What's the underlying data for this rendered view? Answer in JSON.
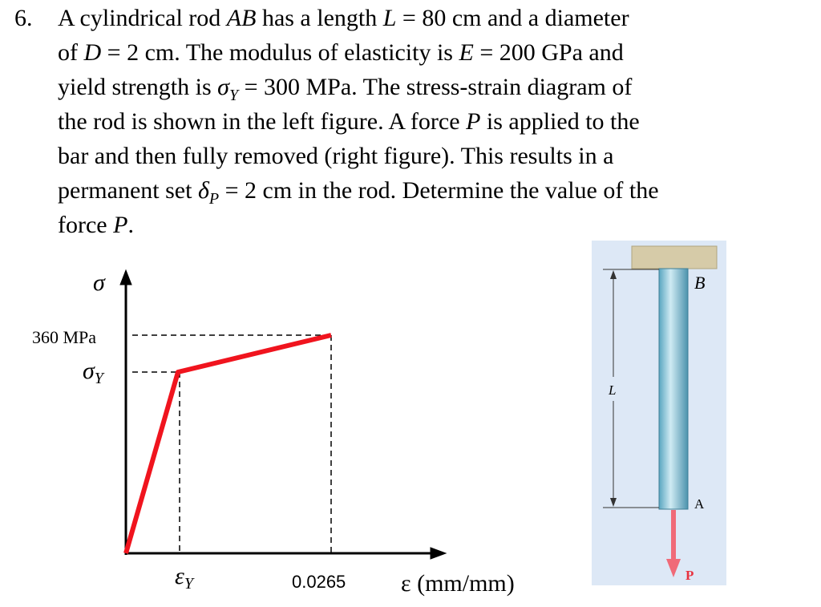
{
  "problem": {
    "number": "6.",
    "lines": [
      [
        "A cylindrical rod ",
        {
          "text": "AB",
          "style": "italic"
        },
        " has a length ",
        {
          "text": "L",
          "style": "italic"
        },
        " = 80 cm and a diameter"
      ],
      [
        "of ",
        {
          "text": "D",
          "style": "italic"
        },
        " = 2 cm. The modulus of elasticity is ",
        {
          "text": "E",
          "style": "italic"
        },
        " = 200 GPa and"
      ],
      [
        "yield strength is ",
        {
          "text": "σ",
          "style": "italic"
        },
        {
          "text": "Y",
          "style": "subscript"
        },
        " = 300 MPa. The stress-strain diagram of"
      ],
      [
        "the rod is shown in the left figure. A force ",
        {
          "text": "P",
          "style": "italic"
        },
        " is applied to the"
      ],
      [
        "bar and then fully removed (right figure). This results in a"
      ],
      [
        "permanent set ",
        {
          "text": "δ",
          "style": "italic"
        },
        {
          "text": "P",
          "style": "subscript"
        },
        " = 2 cm in the rod. Determine the value of the"
      ],
      [
        "force ",
        {
          "text": "P",
          "style": "italic"
        },
        "."
      ]
    ]
  },
  "stress_strain": {
    "y_symbol": "σ",
    "ultimate_label": "360 MPa",
    "yield_label": [
      "σ",
      "Y"
    ],
    "yield_strain_label": [
      "ε",
      "Y"
    ],
    "strain_label": "0.0265",
    "x_label": "ε (mm/mm)"
  },
  "rod": {
    "top": "B",
    "length": "L",
    "bottom": "A",
    "force": "P"
  }
}
